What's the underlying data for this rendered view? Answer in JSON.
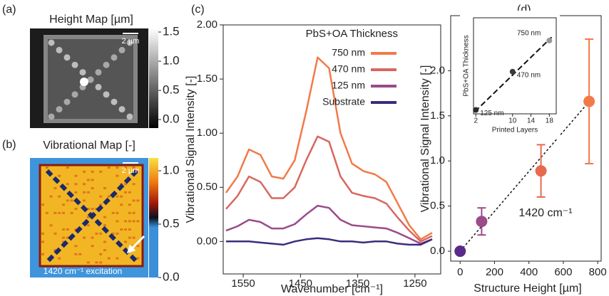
{
  "chart_data": [
    {
      "type": "image",
      "panel": "(a)",
      "title": "Height Map [µm]",
      "scale_bar": "2 µm",
      "colormap": "gray",
      "clim": [
        0,
        1.5
      ],
      "colorbar_ticks": [
        {
          "value": 0,
          "label": "0.0"
        },
        {
          "value": 0.5,
          "label": "0.5"
        },
        {
          "value": 1,
          "label": "1.0"
        },
        {
          "value": 1.5,
          "label": "1.5"
        }
      ]
    },
    {
      "type": "image",
      "panel": "(b)",
      "title": "Vibrational Map [-]",
      "scale_bar": "2 µm",
      "annotation": "1420 cm⁻¹ excitation",
      "colormap": "thermal",
      "clim": [
        0,
        1
      ],
      "colorbar_ticks": [
        {
          "value": 0,
          "label": "0.0"
        },
        {
          "value": 0.5,
          "label": "0.5"
        },
        {
          "value": 1,
          "label": "1.0"
        }
      ]
    },
    {
      "type": "line",
      "panel": "(c)",
      "x_label": "Wavenumber [cm⁻¹]",
      "y_label": "Vibrational Signal Intensity [-]",
      "legend_title": "PbS+OA Thickness",
      "x": [
        1580,
        1560,
        1540,
        1520,
        1500,
        1480,
        1460,
        1440,
        1420,
        1400,
        1380,
        1360,
        1340,
        1320,
        1300,
        1280,
        1260,
        1240,
        1220
      ],
      "series": [
        {
          "name": "750 nm",
          "color": "#f27a48",
          "values": [
            0.45,
            0.6,
            0.85,
            0.8,
            0.6,
            0.58,
            0.75,
            1.2,
            1.7,
            1.6,
            1.0,
            0.72,
            0.65,
            0.62,
            0.55,
            0.35,
            0.15,
            0.02,
            0.08
          ]
        },
        {
          "name": "470 nm",
          "color": "#d8675f",
          "values": [
            0.3,
            0.42,
            0.6,
            0.55,
            0.4,
            0.4,
            0.5,
            0.75,
            0.97,
            0.92,
            0.6,
            0.45,
            0.42,
            0.4,
            0.35,
            0.22,
            0.1,
            0.0,
            0.05
          ]
        },
        {
          "name": "125 nm",
          "color": "#9b4a8a",
          "values": [
            0.1,
            0.14,
            0.2,
            0.18,
            0.12,
            0.12,
            0.16,
            0.25,
            0.33,
            0.31,
            0.2,
            0.15,
            0.14,
            0.13,
            0.12,
            0.08,
            0.03,
            -0.02,
            0.02
          ]
        },
        {
          "name": "Substrate",
          "color": "#3d2b7e",
          "values": [
            0.0,
            0.0,
            0.0,
            -0.01,
            -0.02,
            -0.03,
            0.0,
            0.02,
            0.03,
            0.02,
            0.0,
            0.0,
            -0.01,
            0.0,
            0.0,
            -0.02,
            -0.03,
            -0.03,
            0.02
          ]
        }
      ],
      "xlim": [
        1585,
        1205
      ],
      "xticks": [
        1550,
        1450,
        1350,
        1250
      ],
      "ylim": [
        -0.3,
        2.0
      ],
      "yticks": [
        {
          "value": 0,
          "label": "0.00"
        },
        {
          "value": 0.5,
          "label": "0.50"
        },
        {
          "value": 1,
          "label": "1.00"
        },
        {
          "value": 1.5,
          "label": "1.50"
        },
        {
          "value": 2,
          "label": "2.00"
        }
      ]
    },
    {
      "type": "scatter",
      "panel": "(d)",
      "x_label": "Structure Height [µm]",
      "y_label": "Vibrational Signal Intensity [-]",
      "annotation": "1420 cm⁻¹",
      "x": [
        0,
        125,
        470,
        750
      ],
      "values": [
        0,
        0.33,
        0.89,
        1.66
      ],
      "errors": [
        null,
        0.15,
        0.29,
        0.69
      ],
      "colors": [
        "#5a2a8a",
        "#9b4a8a",
        "#e66a50",
        "#f27a48"
      ],
      "trend": {
        "x": [
          0,
          760
        ],
        "values": [
          0,
          1.68
        ]
      },
      "xlim": [
        -55,
        820
      ],
      "xticks": [
        0,
        200,
        400,
        600,
        800
      ],
      "ylim": [
        -0.11,
        2.61
      ],
      "yticks": [
        {
          "value": 0,
          "label": "0.0"
        },
        {
          "value": 0.5,
          "label": "0.5"
        },
        {
          "value": 1,
          "label": "1.0"
        },
        {
          "value": 1.5,
          "label": "1.5"
        },
        {
          "value": 2,
          "label": "2.0"
        }
      ],
      "inset": {
        "type": "scatter",
        "x_label": "Printed Layers",
        "y_label": "PbS+OA Thickness",
        "x": [
          2,
          10,
          18
        ],
        "values": [
          125,
          470,
          750
        ],
        "value_labels": [
          "125 nm",
          "470 nm",
          "750 nm"
        ],
        "colors": [
          "#2a2a2a",
          "#3a3a3a",
          "#999999"
        ],
        "trend": {
          "x": [
            1.8,
            18.5
          ],
          "values": [
            110,
            780
          ]
        },
        "xlim": [
          1.5,
          19.5
        ],
        "xticks": [
          2,
          10,
          14,
          18
        ],
        "ylim": [
          90,
          955
        ]
      }
    }
  ]
}
